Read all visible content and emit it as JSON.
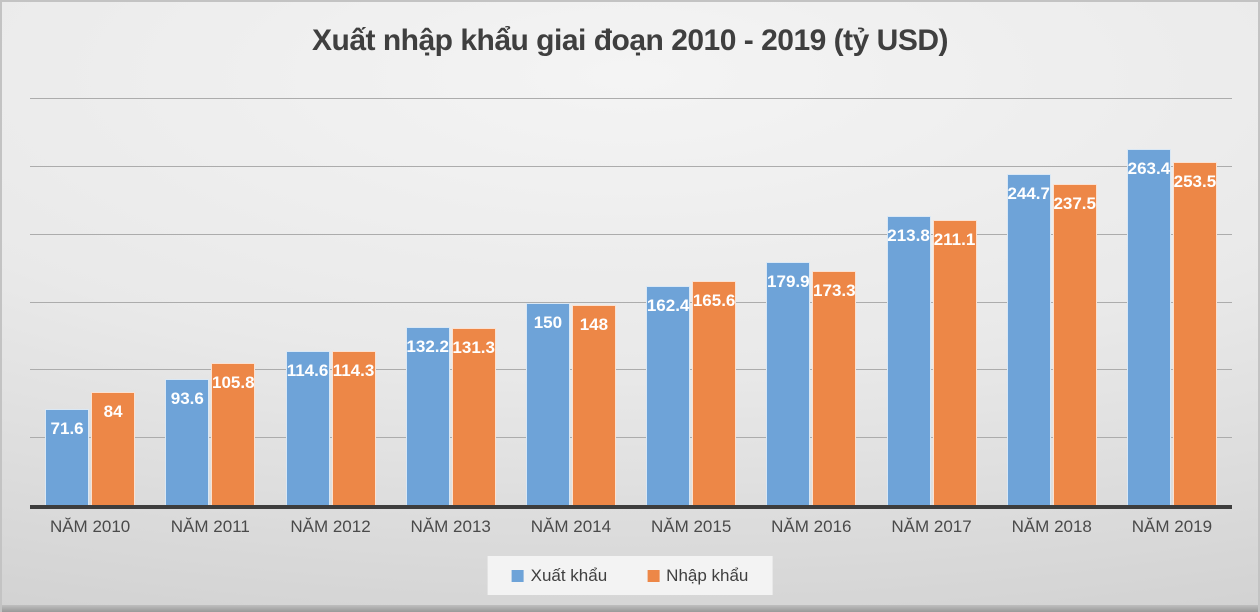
{
  "title": "Xuất nhập khẩu giai đoạn 2010 - 2019 (tỷ USD)",
  "chart_data": {
    "type": "bar",
    "categories": [
      "NĂM 2010",
      "NĂM 2011",
      "NĂM 2012",
      "NĂM 2013",
      "NĂM 2014",
      "NĂM 2015",
      "NĂM 2016",
      "NĂM 2017",
      "NĂM 2018",
      "NĂM 2019"
    ],
    "series": [
      {
        "name": "Xuất khẩu",
        "color": "#6EA3D8",
        "values": [
          71.6,
          93.6,
          114.6,
          132.2,
          150,
          162.4,
          179.9,
          213.8,
          244.7,
          263.4
        ]
      },
      {
        "name": "Nhập khẩu",
        "color": "#ED8747",
        "values": [
          84,
          105.8,
          114.3,
          131.3,
          148,
          165.6,
          173.3,
          211.1,
          237.5,
          253.5
        ]
      }
    ],
    "title": "Xuất nhập khẩu giai đoạn 2010 - 2019 (tỷ USD)",
    "xlabel": "",
    "ylabel": "",
    "ylim": [
      0,
      300
    ],
    "gridline_step": 50,
    "grid": true,
    "legend_position": "bottom",
    "data_labels": "inside-end white bold"
  },
  "colors": {
    "bar_blue": "#6EA3D8",
    "bar_orange": "#ED8747",
    "title_text": "#3F3F3F",
    "axis_line": "#3D3D3D",
    "gridline": "#ACACAC",
    "x_axis_label": "#4A4A4A",
    "data_label": "#FFFFFF",
    "background_light": "#F4F4F4",
    "background_dark": "#D2D2D2",
    "legend_box_bg": "#F3F3F3"
  }
}
